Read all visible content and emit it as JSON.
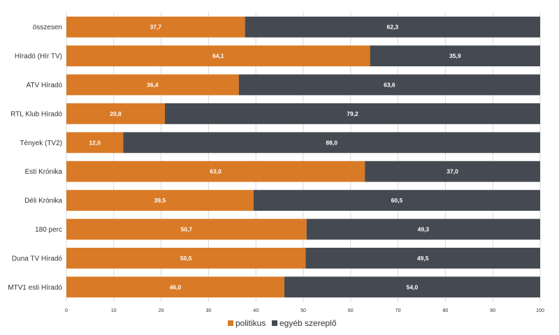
{
  "chart_data": {
    "type": "bar",
    "orientation": "horizontal",
    "stacked": true,
    "categories": [
      "összesen",
      "Híradó (Hír TV)",
      "ATV Híradó",
      "RTL Klub Híradó",
      "Tények (TV2)",
      "Esti Krónika",
      "Déli Krónika",
      "180 perc",
      "Duna TV Híradó",
      "MTV1 esti Híradó"
    ],
    "series": [
      {
        "name": "politikus",
        "color": "#d97a26",
        "values": [
          37.7,
          64.1,
          36.4,
          20.8,
          12.0,
          63.0,
          39.5,
          50.7,
          50.5,
          46.0
        ],
        "labels": [
          "37,7",
          "64,1",
          "36,4",
          "20,8",
          "12,0",
          "63,0",
          "39,5",
          "50,7",
          "50,5",
          "46,0"
        ]
      },
      {
        "name": "egyéb szereplő",
        "color": "#454a52",
        "values": [
          62.3,
          35.9,
          63.6,
          79.2,
          88.0,
          37.0,
          60.5,
          49.3,
          49.5,
          54.0
        ],
        "labels": [
          "62,3",
          "35,9",
          "63,6",
          "79,2",
          "88,0",
          "37,0",
          "60,5",
          "49,3",
          "49,5",
          "54,0"
        ]
      }
    ],
    "xlim": [
      0,
      100
    ],
    "xticks": [
      "0",
      "10",
      "20",
      "30",
      "40",
      "50",
      "60",
      "70",
      "80",
      "90",
      "100"
    ],
    "grid": true,
    "legend_position": "bottom",
    "title": "",
    "xlabel": "",
    "ylabel": ""
  }
}
